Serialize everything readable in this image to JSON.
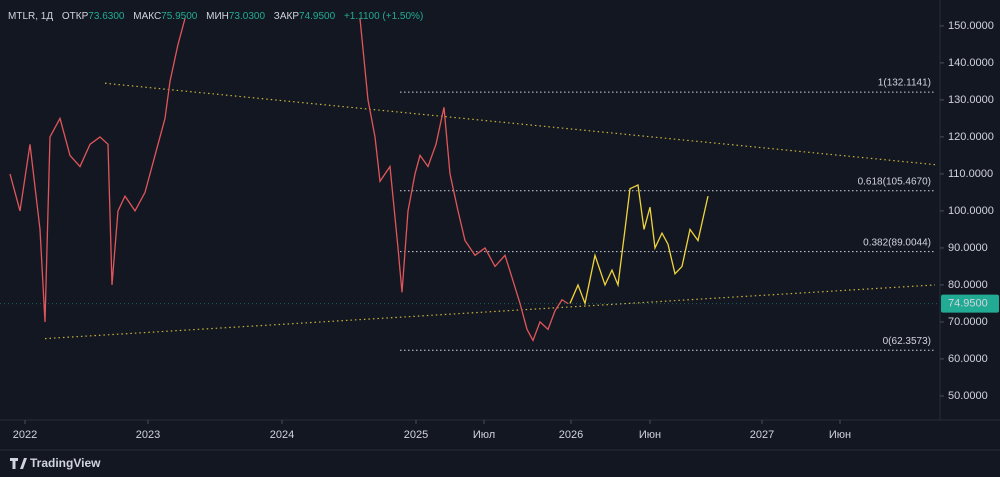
{
  "chart_data": {
    "type": "line",
    "header": {
      "symbol": "MTLR, 1Д",
      "open_label": "ОТКР",
      "open": "73.6300",
      "high_label": "МАКС",
      "high": "75.9500",
      "low_label": "МИН",
      "low": "73.0300",
      "close_label": "ЗАКР",
      "close": "74.9500",
      "change": "+1.1100 (+1.50%)"
    },
    "brand": "TradingView",
    "xlim": [
      0,
      940
    ],
    "ylim": [
      43.5,
      157.0
    ],
    "xticks": [
      {
        "value": 25,
        "label": "2022"
      },
      {
        "value": 148,
        "label": "2023"
      },
      {
        "value": 282,
        "label": "2024"
      },
      {
        "value": 416,
        "label": "2025"
      },
      {
        "value": 484,
        "label": "Июл"
      },
      {
        "value": 571,
        "label": "2026"
      },
      {
        "value": 650,
        "label": "Июн"
      },
      {
        "value": 762,
        "label": "2027"
      },
      {
        "value": 840,
        "label": "Июн"
      }
    ],
    "yticks": [
      {
        "value": 150,
        "label": "150.0000"
      },
      {
        "value": 140,
        "label": "140.0000"
      },
      {
        "value": 130,
        "label": "130.0000"
      },
      {
        "value": 120,
        "label": "120.0000"
      },
      {
        "value": 110,
        "label": "110.0000"
      },
      {
        "value": 100,
        "label": "100.0000"
      },
      {
        "value": 90,
        "label": "90.0000"
      },
      {
        "value": 80,
        "label": "80.0000"
      },
      {
        "value": 70,
        "label": "70.0000"
      },
      {
        "value": 60,
        "label": "60.0000"
      },
      {
        "value": 50,
        "label": "50.0000"
      }
    ],
    "last_price": {
      "value": 74.95,
      "label": "74.9500",
      "color": "#22ab94"
    },
    "series": [
      {
        "color": "#e0565a",
        "x": [
          10,
          20,
          30,
          40,
          45,
          50,
          60,
          70,
          80,
          90,
          100,
          108,
          112,
          118,
          125,
          135,
          145,
          155,
          165,
          170,
          178,
          185
        ],
        "values": [
          110,
          100,
          118,
          95,
          70,
          120,
          125,
          115,
          112,
          118,
          120,
          118,
          80,
          100,
          104,
          100,
          105,
          115,
          125,
          135,
          145,
          152
        ]
      },
      {
        "color": "#e0565a",
        "x": [
          360,
          368,
          375,
          380,
          390,
          398,
          402,
          408,
          415,
          420,
          428,
          436,
          444,
          450,
          458,
          465,
          475,
          485,
          495,
          505,
          512,
          520,
          527,
          533,
          540,
          548,
          555,
          562,
          568
        ],
        "values": [
          152,
          130,
          120,
          108,
          112,
          90,
          78,
          100,
          110,
          115,
          112,
          118,
          128,
          110,
          100,
          92,
          88,
          90,
          85,
          88,
          82,
          75,
          68,
          65,
          70,
          68,
          73,
          76,
          74.95
        ]
      },
      {
        "color": "#f0d43a",
        "x": [
          570,
          578,
          585,
          595,
          605,
          612,
          618,
          625,
          630,
          638,
          644,
          650,
          655,
          662,
          668,
          675,
          682,
          690,
          698,
          708
        ],
        "values": [
          75,
          80,
          75,
          88,
          80,
          84,
          80,
          95,
          106,
          107,
          95,
          101,
          90,
          94,
          91,
          83,
          85,
          95,
          92,
          104
        ]
      }
    ],
    "trendlines": {
      "color": "#c9b43a",
      "lines": [
        {
          "x": [
            105,
            935
          ],
          "values": [
            134.5,
            112.5
          ]
        },
        {
          "x": [
            45,
            935
          ],
          "values": [
            65.5,
            80
          ]
        }
      ]
    },
    "fib_levels": {
      "color": "#d1d4dc",
      "x": [
        400,
        935
      ],
      "levels": [
        {
          "value": 132.1141,
          "label": "1(132.1141)"
        },
        {
          "value": 105.467,
          "label": "0.618(105.4670)"
        },
        {
          "value": 89.0044,
          "label": "0.382(89.0044)"
        },
        {
          "value": 62.3573,
          "label": "0(62.3573)"
        }
      ]
    }
  }
}
